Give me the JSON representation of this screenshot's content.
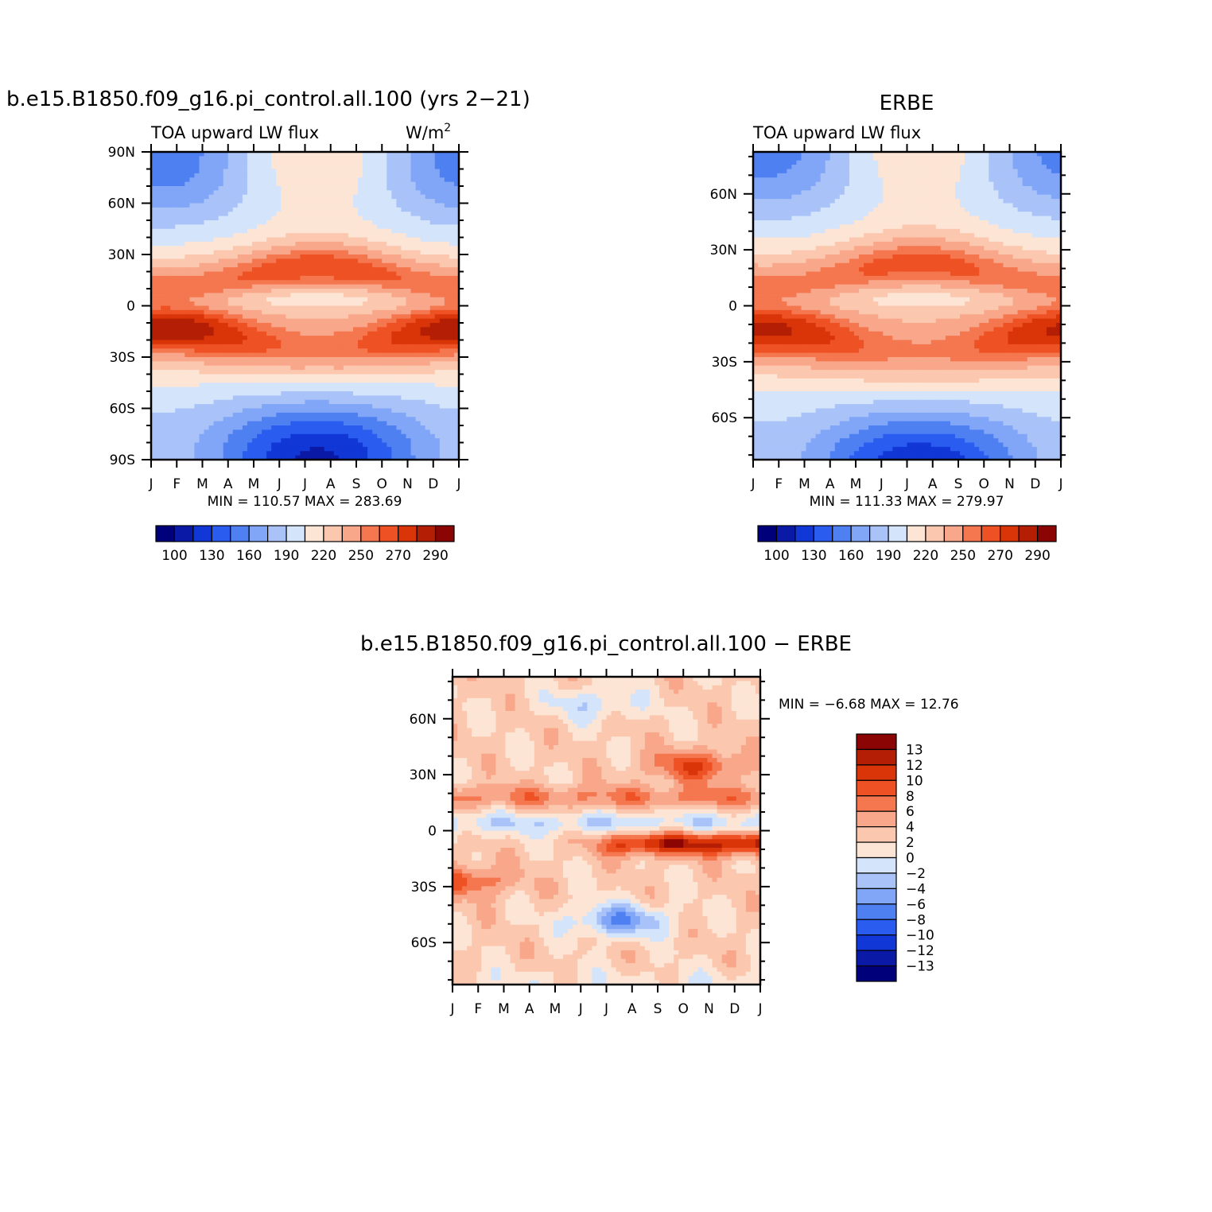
{
  "palette_name": "NCL blue-white-red diverging",
  "palette": [
    "#00007a",
    "#0a1aa6",
    "#1137d6",
    "#2a5cf0",
    "#4f80f2",
    "#81a6f7",
    "#a9c3f9",
    "#d4e4fb",
    "#fde5d6",
    "#fbc8af",
    "#f9a78b",
    "#f4774f",
    "#ee5224",
    "#d93508",
    "#b31e05",
    "#8a0503"
  ],
  "panels": [
    {
      "title": "b.e15.B1850.f09_g16.pi_control.all.100 (yrs 2−21)",
      "left_label": "TOA upward LW flux",
      "right_label": "W/m",
      "right_label_sup": "2",
      "stats": "MIN = 110.57 MAX = 283.69",
      "colorbar_labels": [
        "100",
        "130",
        "160",
        "190",
        "220",
        "250",
        "270",
        "290"
      ]
    },
    {
      "title": "ERBE",
      "left_label": "TOA upward LW flux",
      "right_label": "",
      "right_label_sup": "",
      "stats": "MIN = 111.33 MAX = 279.97",
      "colorbar_labels": [
        "100",
        "130",
        "160",
        "190",
        "220",
        "250",
        "270",
        "290"
      ]
    },
    {
      "title": "b.e15.B1850.f09_g16.pi_control.all.100 − ERBE",
      "left_label": "",
      "right_label": "",
      "right_label_sup": "",
      "stats": "MIN =   −6.68 MAX =   12.76",
      "colorbar_labels": [
        "13",
        "12",
        "10",
        "8",
        "6",
        "4",
        "2",
        "0",
        "−2",
        "−4",
        "−6",
        "−8",
        "−10",
        "−12",
        "−13"
      ]
    }
  ],
  "chart_data": [
    {
      "type": "heatmap",
      "title": "b.e15.B1850.f09_g16.pi_control.all.100 (yrs 2−21)",
      "variable": "TOA upward LW flux",
      "units": "W/m2",
      "x": [
        "J",
        "F",
        "M",
        "A",
        "M",
        "J",
        "J",
        "A",
        "S",
        "O",
        "N",
        "D",
        "J"
      ],
      "y_ticks": [
        "90N",
        "60N",
        "30N",
        "0",
        "30S",
        "60S",
        "90S"
      ],
      "ylim": [
        -90,
        90
      ],
      "levels": [
        100,
        115,
        130,
        145,
        160,
        175,
        190,
        205,
        220,
        235,
        250,
        260,
        270,
        280,
        290
      ],
      "min": 110.57,
      "max": 283.69,
      "features": [
        {
          "type": "band",
          "lat": 18,
          "lat_halfwidth": 11,
          "amplitude": 45,
          "seasonal_shift": 6
        },
        {
          "type": "band",
          "lat": -20,
          "lat_halfwidth": 13,
          "amplitude": 55,
          "seasonal_shift": -6
        },
        {
          "type": "minimum",
          "lat": 3,
          "amplitude": -20
        },
        {
          "type": "polar_low",
          "pole": "S",
          "value": 112,
          "season_peak": "Jul"
        },
        {
          "type": "polar_low",
          "pole": "N",
          "value": 150,
          "season_peak": "Jan"
        }
      ]
    },
    {
      "type": "heatmap",
      "title": "ERBE",
      "variable": "TOA upward LW flux",
      "x": [
        "J",
        "F",
        "M",
        "A",
        "M",
        "J",
        "J",
        "A",
        "S",
        "O",
        "N",
        "D",
        "J"
      ],
      "y_ticks": [
        "60N",
        "30N",
        "0",
        "30S",
        "60S"
      ],
      "ylim": [
        -82.5,
        82.5
      ],
      "levels": [
        100,
        115,
        130,
        145,
        160,
        175,
        190,
        205,
        220,
        235,
        250,
        260,
        270,
        280,
        290
      ],
      "min": 111.33,
      "max": 279.97,
      "features": [
        {
          "type": "band",
          "lat": 18,
          "lat_halfwidth": 11,
          "amplitude": 42,
          "seasonal_shift": 6
        },
        {
          "type": "band",
          "lat": -20,
          "lat_halfwidth": 13,
          "amplitude": 50,
          "seasonal_shift": -6
        },
        {
          "type": "minimum",
          "lat": 3,
          "amplitude": -18
        },
        {
          "type": "polar_low",
          "pole": "S",
          "value": 113,
          "season_peak": "Jul"
        },
        {
          "type": "polar_low",
          "pole": "N",
          "value": 150,
          "season_peak": "Jan"
        }
      ]
    },
    {
      "type": "heatmap",
      "title": "b.e15.B1850.f09_g16.pi_control.all.100 − ERBE",
      "x": [
        "J",
        "F",
        "M",
        "A",
        "M",
        "J",
        "J",
        "A",
        "S",
        "O",
        "N",
        "D",
        "J"
      ],
      "y_ticks": [
        "60N",
        "30N",
        "0",
        "30S",
        "60S"
      ],
      "ylim": [
        -82.5,
        82.5
      ],
      "levels": [
        -13,
        -12,
        -10,
        -8,
        -6,
        -4,
        -2,
        0,
        2,
        4,
        6,
        8,
        10,
        12,
        13
      ],
      "min": -6.68,
      "max": 12.76,
      "features": [
        {
          "type": "band",
          "lat": -7,
          "months": "Jul-Dec",
          "value": 12
        },
        {
          "type": "band",
          "lat": 4,
          "months": "Jan-Dec",
          "value": -2
        },
        {
          "type": "band",
          "lat": 18,
          "months": "Jan-Dec",
          "value": 6
        },
        {
          "type": "spot",
          "lat": 35,
          "month": "Oct",
          "value": 9
        },
        {
          "type": "spot",
          "lat": -27,
          "month": "Jan",
          "value": 8
        },
        {
          "type": "spot",
          "lat": -48,
          "month": "Jul",
          "value": -6
        },
        {
          "type": "spot",
          "lat": 68,
          "month": "Jun",
          "value": -2
        }
      ]
    }
  ]
}
